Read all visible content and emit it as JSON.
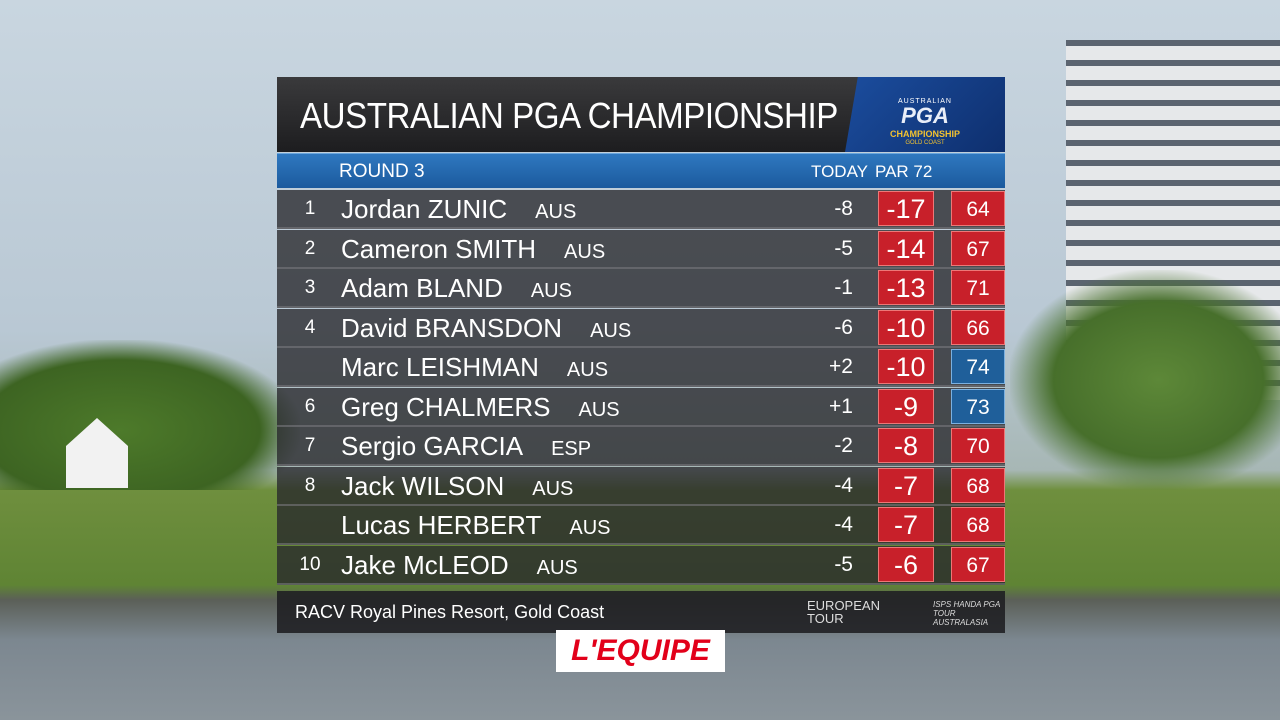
{
  "header": {
    "title": "AUSTRALIAN PGA CHAMPIONSHIP",
    "logo": [
      "AUSTRALIAN",
      "PGA",
      "CHAMPIONSHIP",
      "GOLD COAST"
    ]
  },
  "table": {
    "round": "ROUND 3",
    "columns": [
      "TODAY",
      "PAR 72"
    ],
    "rows": [
      {
        "pos": "1",
        "player": "Jordan ZUNIC",
        "country": "AUS",
        "today": "-8",
        "total": "-17",
        "round": "64"
      },
      {
        "pos": "2",
        "player": "Cameron SMITH",
        "country": "AUS",
        "today": "-5",
        "total": "-14",
        "round": "67"
      },
      {
        "pos": "3",
        "player": "Adam BLAND",
        "country": "AUS",
        "today": "-1",
        "total": "-13",
        "round": "71"
      },
      {
        "pos": "4",
        "player": "David BRANSDON",
        "country": "AUS",
        "today": "-6",
        "total": "-10",
        "round": "66"
      },
      {
        "player": "Marc LEISHMAN",
        "country": "AUS",
        "today": "+2",
        "total": "-10",
        "round": "74"
      },
      {
        "pos": "6",
        "player": "Greg CHALMERS",
        "country": "AUS",
        "today": "+1",
        "total": "-9",
        "round": "73"
      },
      {
        "pos": "7",
        "player": "Sergio GARCIA",
        "country": "ESP",
        "today": "-2",
        "total": "-8",
        "round": "70"
      },
      {
        "pos": "8",
        "player": "Jack WILSON",
        "country": "AUS",
        "today": "-4",
        "total": "-7",
        "round": "68"
      },
      {
        "player": "Lucas HERBERT",
        "country": "AUS",
        "today": "-4",
        "total": "-7",
        "round": "68"
      },
      {
        "pos": "10",
        "player": "Jake McLEOD",
        "country": "AUS",
        "today": "-5",
        "total": "-6",
        "round": "67"
      }
    ]
  },
  "footer": {
    "venue": "RACV Royal Pines Resort, Gold Coast",
    "sponsors": [
      "EUROPEAN TOUR",
      "ISPS HANDA PGA TOUR AUSTRALASIA"
    ]
  },
  "channel": "L'EQUIPE"
}
